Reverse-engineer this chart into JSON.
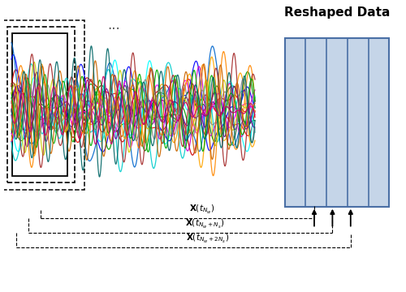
{
  "title": "Reshaped Data",
  "title_fontsize": 11,
  "bg_color": "#ffffff",
  "signal_colors": [
    "red",
    "#cc0000",
    "blue",
    "#0066cc",
    "green",
    "#009900",
    "cyan",
    "#00cccc",
    "magenta",
    "#cc00cc",
    "orange",
    "#ff8800",
    "purple",
    "#660099",
    "#cccc00",
    "brown",
    "#888888",
    "#00aa00",
    "#cc6600",
    "#006666",
    "#cc0066"
  ],
  "box_fill": "#c5d5e8",
  "box_edge": "#4a6fa5",
  "n_dividers": 5,
  "dots_text": "...",
  "label1": "$\\mathbf{X}(t_{N_w})$",
  "label2": "$\\mathbf{X}(t_{N_w+N_s})$",
  "label3": "$\\mathbf{X}(t_{N_w+2N_s})$"
}
